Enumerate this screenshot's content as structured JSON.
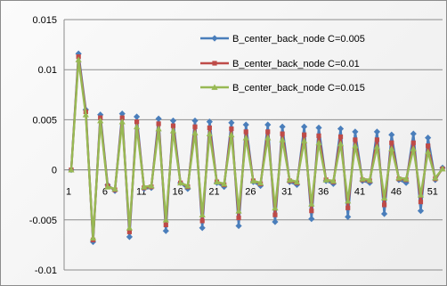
{
  "chart_data": {
    "type": "line",
    "title": "",
    "xlabel": "",
    "ylabel": "",
    "ylim": [
      -0.01,
      0.015
    ],
    "y_ticks": [
      "-0.01",
      "-0.005",
      "0",
      "0.005",
      "0.01",
      "0.015"
    ],
    "x_ticks": [
      "1",
      "6",
      "11",
      "16",
      "21",
      "26",
      "31",
      "36",
      "41",
      "46",
      "51"
    ],
    "grid": "horizontal",
    "legend_position": "top-right",
    "x": [
      1,
      2,
      3,
      4,
      5,
      6,
      7,
      8,
      9,
      10,
      11,
      12,
      13,
      14,
      15,
      16,
      17,
      18,
      19,
      20,
      21,
      22,
      23,
      24,
      25,
      26,
      27,
      28,
      29,
      30,
      31,
      32,
      33,
      34,
      35,
      36,
      37,
      38,
      39,
      40,
      41,
      42,
      43,
      44,
      45,
      46,
      47,
      48,
      49,
      50,
      51,
      52
    ],
    "series": [
      {
        "name": "B_center_back_node C=0.005",
        "color": "#4a7ebb",
        "marker": "diamond",
        "values": [
          0,
          0.0116,
          0.006,
          -0.0072,
          0.0055,
          -0.0015,
          -0.0021,
          0.0056,
          -0.0067,
          0.0053,
          -0.0019,
          -0.0018,
          0.0051,
          -0.0061,
          0.0049,
          -0.0013,
          -0.0019,
          0.0049,
          -0.0058,
          0.0048,
          -0.0013,
          -0.0017,
          0.0047,
          -0.0056,
          0.0045,
          -0.0012,
          -0.0016,
          0.0045,
          -0.0052,
          0.0043,
          -0.0012,
          -0.0015,
          0.0043,
          -0.0049,
          0.0042,
          -0.0011,
          -0.0014,
          0.0041,
          -0.0047,
          0.0038,
          -0.0011,
          -0.0013,
          0.0038,
          -0.0044,
          0.0035,
          -0.001,
          -0.0013,
          0.0036,
          -0.0041,
          0.0032,
          -0.001,
          0.0002
        ]
      },
      {
        "name": "B_center_back_node C=0.01",
        "color": "#be4b48",
        "marker": "square",
        "values": [
          0,
          0.0113,
          0.0058,
          -0.007,
          0.0052,
          -0.0016,
          -0.002,
          0.0052,
          -0.0062,
          0.0048,
          -0.0018,
          -0.0017,
          0.0046,
          -0.0055,
          0.0044,
          -0.0013,
          -0.0017,
          0.0043,
          -0.0051,
          0.0042,
          -0.0012,
          -0.0015,
          0.0041,
          -0.0048,
          0.0038,
          -0.0011,
          -0.0014,
          0.0038,
          -0.0045,
          0.0036,
          -0.0011,
          -0.0013,
          0.0035,
          -0.0041,
          0.0034,
          -0.001,
          -0.0012,
          0.0033,
          -0.0038,
          0.003,
          -0.001,
          -0.0011,
          0.003,
          -0.0035,
          0.0027,
          -0.0009,
          -0.001,
          0.0027,
          -0.0032,
          0.0024,
          -0.0009,
          0.0001
        ]
      },
      {
        "name": "B_center_back_node C=0.015",
        "color": "#98b954",
        "marker": "triangle",
        "values": [
          0,
          0.011,
          0.0055,
          -0.0068,
          0.0049,
          -0.0017,
          -0.0019,
          0.0048,
          -0.0058,
          0.0043,
          -0.0017,
          -0.0016,
          0.0041,
          -0.005,
          0.0039,
          -0.0013,
          -0.0016,
          0.0037,
          -0.0045,
          0.0036,
          -0.0012,
          -0.0014,
          0.0035,
          -0.0041,
          0.0032,
          -0.0011,
          -0.0013,
          0.0032,
          -0.0038,
          0.003,
          -0.001,
          -0.0012,
          0.0029,
          -0.0034,
          0.0027,
          -0.001,
          -0.0011,
          0.0026,
          -0.0031,
          0.0024,
          -0.0009,
          -0.001,
          0.0023,
          -0.0028,
          0.0021,
          -0.0008,
          -0.0009,
          0.0021,
          -0.0025,
          0.0018,
          -0.0008,
          0.0001
        ]
      }
    ]
  }
}
